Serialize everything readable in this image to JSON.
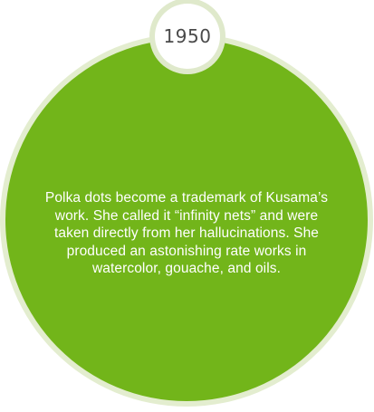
{
  "milestone": {
    "year": "1950",
    "description": "Polka dots become a trademark of Kusama’s\nwork. She called it “infinity nets” and were\ntaken directly from her hallucinations. She\nproduced an astonishing rate works in\nwatercolor, gouache, and oils."
  },
  "colors": {
    "circle_fill": "#72b51a",
    "circle_ring": "#e3edcf",
    "badge_fill": "#ffffff",
    "year_text": "#4a4a4a",
    "body_text": "#ffffff"
  }
}
